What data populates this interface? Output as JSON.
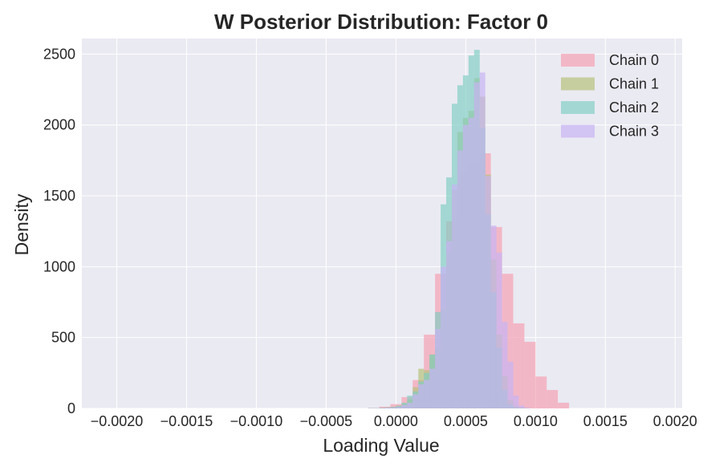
{
  "chart_data": {
    "type": "histogram",
    "title": "W Posterior Distribution: Factor 0",
    "xlabel": "Loading Value",
    "ylabel": "Density",
    "xlim": [
      -0.00225,
      0.00205
    ],
    "ylim": [
      0,
      2610
    ],
    "xticks": [
      -0.002,
      -0.0015,
      -0.001,
      -0.0005,
      0.0,
      0.0005,
      0.001,
      0.0015,
      0.002
    ],
    "xtick_labels": [
      "−0.0020",
      "−0.0015",
      "−0.0010",
      "−0.0005",
      "0.0000",
      "0.0005",
      "0.0010",
      "0.0015",
      "0.0020"
    ],
    "yticks": [
      0,
      500,
      1000,
      1500,
      2000,
      2500
    ],
    "ytick_labels": [
      "0",
      "500",
      "1000",
      "1500",
      "2000",
      "2500"
    ],
    "grid": true,
    "legend_position": "top-right",
    "series": [
      {
        "name": "Chain 0",
        "color": "#f4a6b7",
        "opacity": 0.75,
        "bin_start": -0.0002,
        "bin_width": 8e-05,
        "values": [
          3,
          12,
          30,
          80,
          200,
          520,
          950,
          1320,
          1650,
          1730,
          1800,
          1280,
          950,
          600,
          470,
          225,
          130,
          40
        ]
      },
      {
        "name": "Chain 1",
        "color": "#b7c27e",
        "opacity": 0.7,
        "bin_start": -0.0002,
        "bin_width": 4e-05,
        "values": [
          2,
          2,
          5,
          8,
          12,
          20,
          35,
          60,
          150,
          280,
          270,
          380,
          420,
          700,
          1100,
          1540,
          1950,
          2050,
          2100,
          2330,
          2200,
          1650,
          1050,
          520,
          230,
          60,
          15,
          5
        ]
      },
      {
        "name": "Chain 2",
        "color": "#7dcdc2",
        "opacity": 0.65,
        "bin_start": -0.0002,
        "bin_width": 4e-05,
        "values": [
          2,
          2,
          4,
          6,
          10,
          18,
          40,
          90,
          120,
          190,
          250,
          380,
          680,
          1440,
          1630,
          2150,
          2280,
          2350,
          2490,
          2530,
          1980,
          1370,
          820,
          430,
          130,
          30,
          8,
          3
        ]
      },
      {
        "name": "Chain 3",
        "color": "#c8b4f4",
        "opacity": 0.7,
        "bin_start": -0.0002,
        "bin_width": 4e-05,
        "values": [
          1,
          2,
          3,
          5,
          8,
          12,
          25,
          40,
          100,
          170,
          200,
          280,
          560,
          1000,
          1180,
          1580,
          1820,
          2000,
          2050,
          2300,
          2370,
          1640,
          1290,
          1100,
          610,
          330,
          90,
          20,
          5
        ]
      }
    ]
  }
}
